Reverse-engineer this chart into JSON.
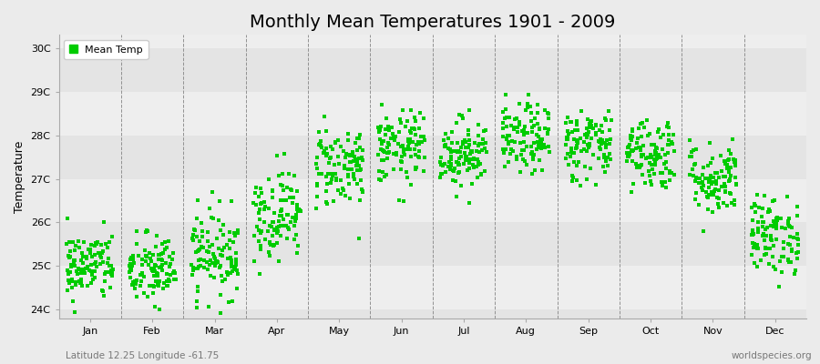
{
  "title": "Monthly Mean Temperatures 1901 - 2009",
  "ylabel": "Temperature",
  "xlabel_bottom": "Latitude 12.25 Longitude -61.75",
  "xlabel_right": "worldspecies.org",
  "legend_label": "Mean Temp",
  "dot_color": "#00CC00",
  "bg_color": "#EBEBEB",
  "plot_bg_color": "#EBEBEB",
  "stripe_colors": [
    "#E8E8E8",
    "#DEDEDE"
  ],
  "ylim": [
    23.8,
    30.3
  ],
  "ytick_labels": [
    "24C",
    "25C",
    "26C",
    "27C",
    "28C",
    "29C",
    "30C"
  ],
  "ytick_values": [
    24,
    25,
    26,
    27,
    28,
    29,
    30
  ],
  "months": [
    "Jan",
    "Feb",
    "Mar",
    "Apr",
    "May",
    "Jun",
    "Jul",
    "Aug",
    "Sep",
    "Oct",
    "Nov",
    "Dec"
  ],
  "month_means": [
    25.0,
    24.9,
    25.3,
    26.2,
    27.3,
    27.7,
    27.6,
    27.9,
    27.8,
    27.6,
    27.0,
    25.7
  ],
  "month_stds": [
    0.4,
    0.42,
    0.5,
    0.52,
    0.48,
    0.42,
    0.4,
    0.4,
    0.42,
    0.42,
    0.42,
    0.45
  ],
  "n_years": 109,
  "seed": 42,
  "title_fontsize": 14,
  "axis_label_fontsize": 9,
  "tick_fontsize": 8,
  "legend_fontsize": 8,
  "marker_size": 3
}
